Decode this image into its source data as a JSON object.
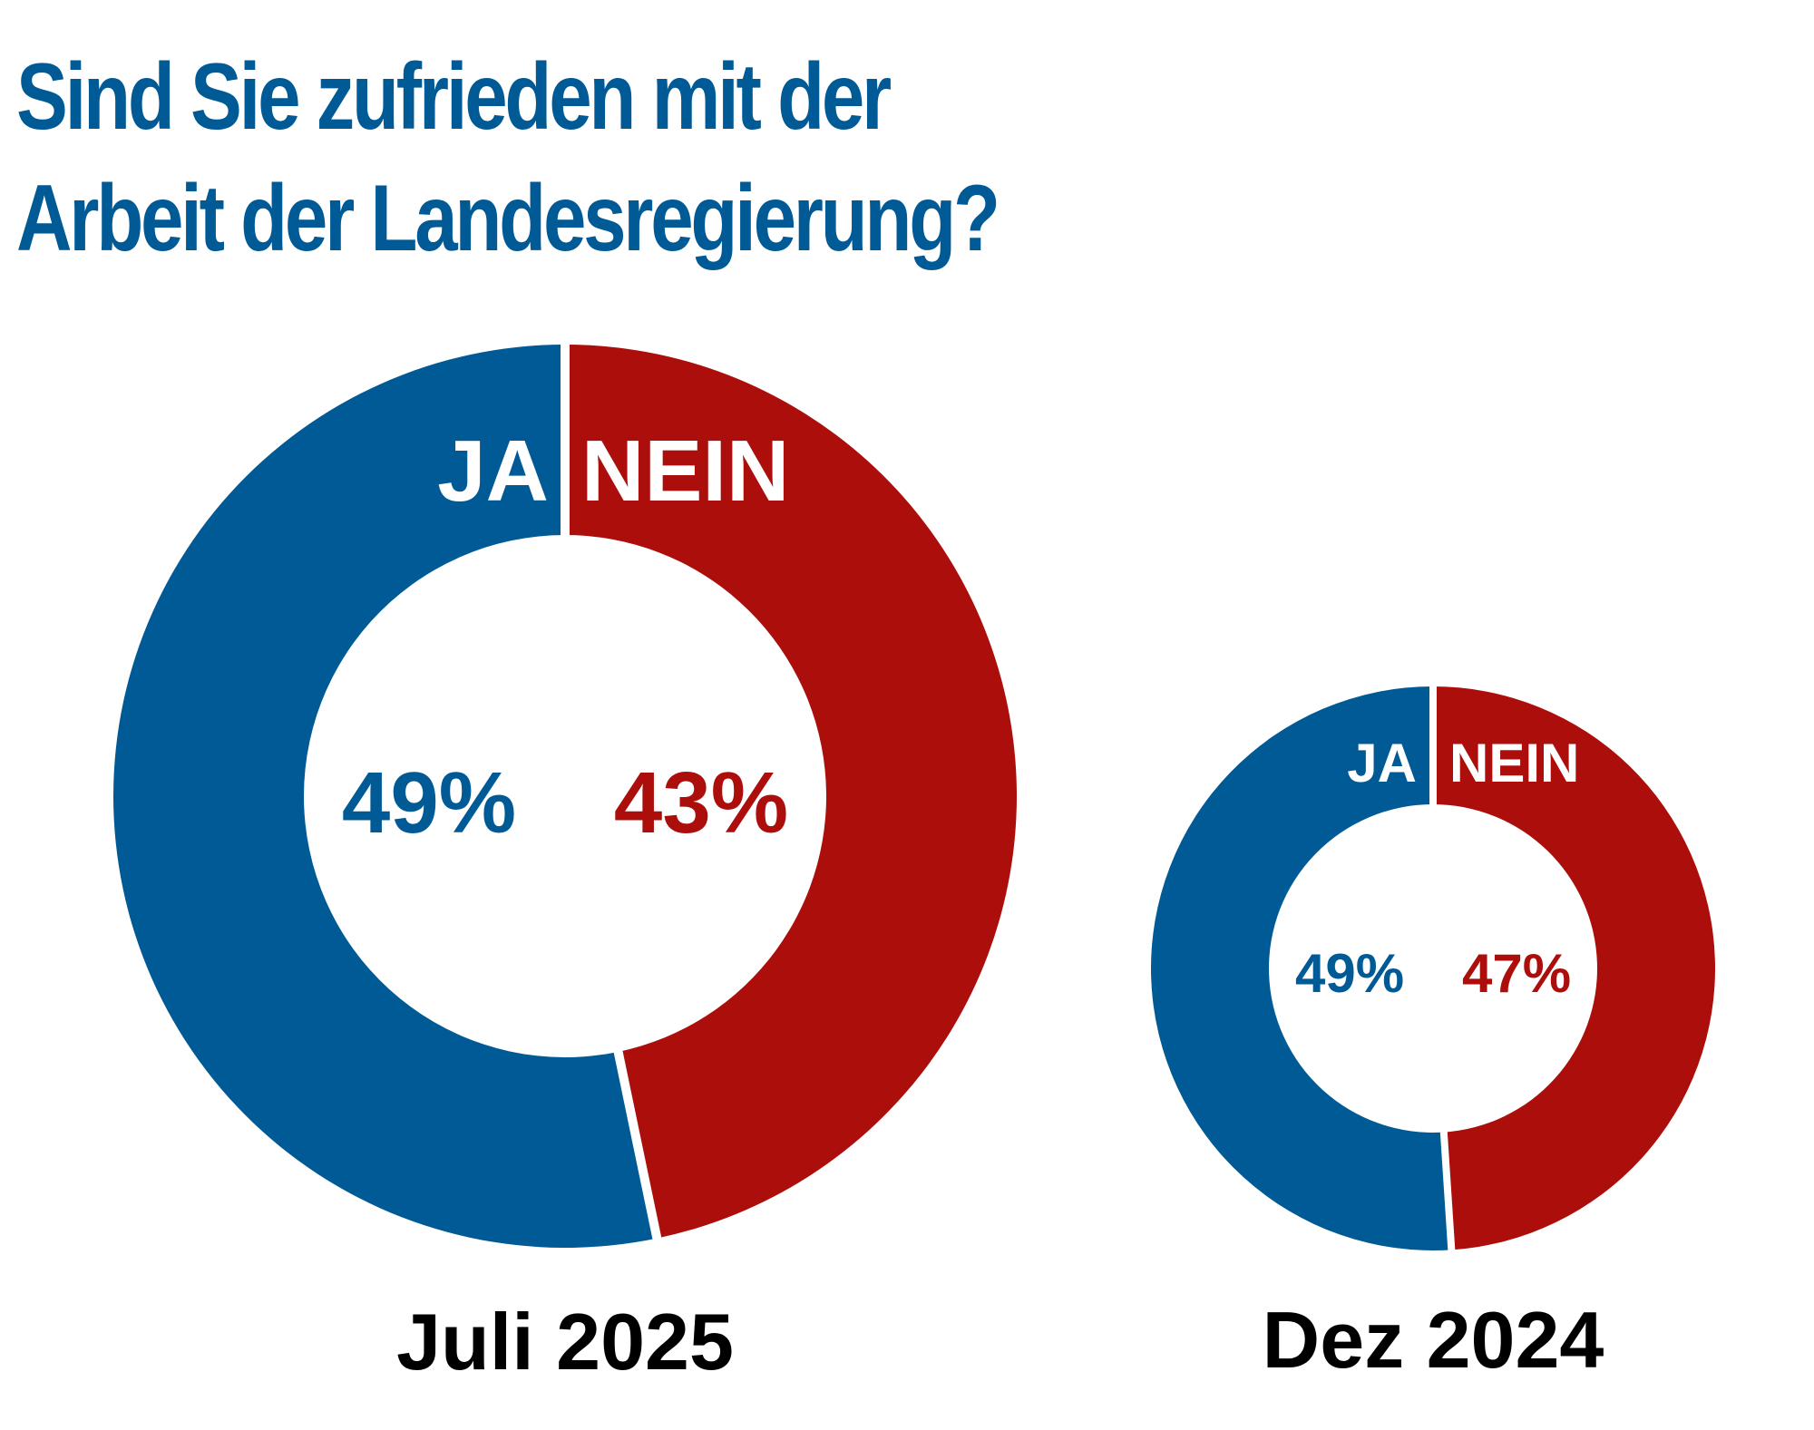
{
  "title_lines": [
    "Sind Sie zufrieden mit der",
    "Arbeit der Landesregierung?"
  ],
  "colors": {
    "ja": "#005a96",
    "nein": "#ab0e0b",
    "title": "#005a96"
  },
  "chart_data": [
    {
      "type": "pie",
      "variant": "donut",
      "title": "Sind Sie zufrieden mit der Arbeit der Landesregierung?",
      "caption": "Juli 2025",
      "categories": [
        "JA",
        "NEIN"
      ],
      "values": [
        49,
        43
      ],
      "value_labels": [
        "49%",
        "43%"
      ],
      "unit": "%"
    },
    {
      "type": "pie",
      "variant": "donut",
      "title": "Sind Sie zufrieden mit der Arbeit der Landesregierung?",
      "caption": "Dez 2024",
      "categories": [
        "JA",
        "NEIN"
      ],
      "values": [
        49,
        47
      ],
      "value_labels": [
        "49%",
        "47%"
      ],
      "unit": "%"
    }
  ]
}
